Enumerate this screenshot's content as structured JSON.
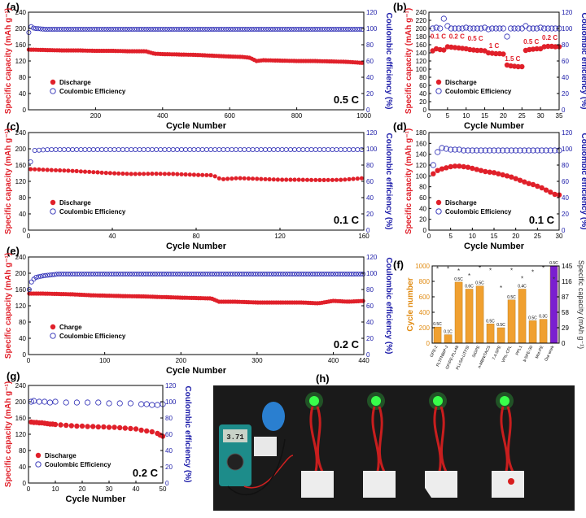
{
  "colors": {
    "discharge": "#e0202a",
    "efficiency": "#2828b4",
    "bar": "#f0a030",
    "bar_highlight": "#7a1fd0",
    "axis_left": "#e0202a",
    "axis_right": "#1a1aa8"
  },
  "chart_data": [
    {
      "panel": "(a)",
      "type": "scatter",
      "ylabel_left": "Specific capacity (mAh g⁻¹)",
      "ylabel_right": "Coulombic efficiency (%)",
      "xlabel": "Cycle Number",
      "xlim": [
        0,
        1000
      ],
      "ylim_left": [
        0,
        240
      ],
      "ylim_right": [
        0,
        120
      ],
      "xticks": [
        200,
        400,
        600,
        800,
        1000
      ],
      "yticks_left": [
        0,
        40,
        80,
        120,
        160,
        200,
        240
      ],
      "yticks_right": [
        0,
        20,
        40,
        60,
        80,
        100,
        120
      ],
      "legend": [
        "Discharge",
        "Coulombic Efficiency"
      ],
      "rate_label": "0.5 C",
      "series": [
        {
          "name": "Discharge",
          "axis": "left",
          "x": [
            1,
            50,
            100,
            150,
            200,
            250,
            300,
            350,
            375,
            400,
            450,
            500,
            550,
            600,
            640,
            660,
            680,
            700,
            750,
            800,
            850,
            900,
            950,
            1000
          ],
          "y": [
            148,
            147,
            146,
            146,
            145,
            145,
            144,
            144,
            138,
            137,
            136,
            135,
            133,
            131,
            130,
            128,
            120,
            122,
            121,
            120,
            120,
            119,
            118,
            115
          ]
        },
        {
          "name": "Coulombic Efficiency",
          "axis": "right",
          "x": [
            1,
            5,
            10,
            20,
            50,
            100,
            200,
            300,
            400,
            500,
            600,
            700,
            800,
            900,
            1000
          ],
          "y": [
            95,
            104,
            101,
            100,
            99,
            99,
            99,
            99,
            99,
            99,
            99,
            99,
            99,
            99,
            99
          ]
        }
      ]
    },
    {
      "panel": "(b)",
      "type": "scatter",
      "ylabel_left": "Specific capacity (mAh g⁻¹)",
      "ylabel_right": "Coulombic efficiency (%)",
      "xlabel": "Cycle Number",
      "xlim": [
        0,
        35
      ],
      "ylim_left": [
        0,
        240
      ],
      "ylim_right": [
        0,
        120
      ],
      "xticks": [
        0,
        5,
        10,
        15,
        20,
        25,
        30,
        35
      ],
      "yticks_left": [
        0,
        20,
        40,
        60,
        80,
        100,
        120,
        140,
        160,
        180,
        200,
        220,
        240
      ],
      "yticks_right": [
        0,
        20,
        40,
        60,
        80,
        100,
        120
      ],
      "legend": [
        "Discharge",
        "Coulombic Efficiency"
      ],
      "annotations": [
        {
          "text": "0.1 C",
          "x": 2.5,
          "y": 175
        },
        {
          "text": "0.2 C",
          "x": 7.5,
          "y": 175
        },
        {
          "text": "0.5 C",
          "x": 12.5,
          "y": 170
        },
        {
          "text": "1 C",
          "x": 17.5,
          "y": 152
        },
        {
          "text": "1.5 C",
          "x": 22.5,
          "y": 120
        },
        {
          "text": "0.5 C",
          "x": 27.5,
          "y": 162
        },
        {
          "text": "0.2 C",
          "x": 32.5,
          "y": 172
        }
      ],
      "series": [
        {
          "name": "Discharge",
          "axis": "left",
          "x": [
            1,
            2,
            3,
            4,
            5,
            6,
            7,
            8,
            9,
            10,
            11,
            12,
            13,
            14,
            15,
            16,
            17,
            18,
            19,
            20,
            21,
            22,
            23,
            24,
            25,
            26,
            27,
            28,
            29,
            30,
            31,
            32,
            33,
            34,
            35
          ],
          "y": [
            145,
            150,
            148,
            147,
            155,
            154,
            153,
            152,
            151,
            150,
            148,
            147,
            146,
            146,
            145,
            140,
            139,
            138,
            138,
            137,
            110,
            108,
            107,
            106,
            106,
            146,
            148,
            149,
            150,
            150,
            155,
            156,
            156,
            155,
            155
          ]
        },
        {
          "name": "Coulombic Efficiency",
          "axis": "right",
          "x": [
            1,
            2,
            3,
            4,
            5,
            6,
            7,
            8,
            9,
            10,
            11,
            12,
            13,
            14,
            15,
            16,
            17,
            18,
            19,
            20,
            21,
            22,
            23,
            24,
            25,
            26,
            27,
            28,
            29,
            30,
            31,
            32,
            33,
            34,
            35
          ],
          "y": [
            100,
            101,
            100,
            112,
            103,
            100,
            100,
            100,
            100,
            101,
            100,
            100,
            100,
            100,
            101,
            99,
            100,
            100,
            100,
            100,
            90,
            100,
            100,
            100,
            100,
            103,
            100,
            100,
            100,
            101,
            100,
            100,
            100,
            100,
            100
          ]
        }
      ]
    },
    {
      "panel": "(c)",
      "type": "scatter",
      "ylabel_left": "Specific capacity (mAh g⁻¹)",
      "ylabel_right": "Coulombic efficiency (%)",
      "xlabel": "Cycle Number",
      "xlim": [
        0,
        160
      ],
      "ylim_left": [
        0,
        240
      ],
      "ylim_right": [
        0,
        120
      ],
      "xticks": [
        0,
        40,
        80,
        120,
        160
      ],
      "yticks_left": [
        0,
        40,
        80,
        120,
        160,
        200,
        240
      ],
      "yticks_right": [
        0,
        20,
        40,
        60,
        80,
        100,
        120
      ],
      "legend": [
        "Discharge",
        "Coulombic Efficiency"
      ],
      "rate_label": "0.1 C",
      "series": [
        {
          "name": "Discharge",
          "axis": "left",
          "x": [
            1,
            10,
            20,
            30,
            40,
            50,
            60,
            70,
            80,
            88,
            92,
            100,
            110,
            120,
            130,
            140,
            150,
            160
          ],
          "y": [
            150,
            148,
            146,
            143,
            140,
            138,
            139,
            138,
            136,
            135,
            125,
            128,
            126,
            124,
            124,
            123,
            124,
            128
          ]
        },
        {
          "name": "Coulombic Efficiency",
          "axis": "right",
          "x": [
            1,
            3,
            10,
            20,
            40,
            60,
            80,
            100,
            120,
            140,
            160
          ],
          "y": [
            84,
            98,
            99,
            99,
            99,
            99,
            99,
            99,
            99,
            99,
            99
          ]
        }
      ]
    },
    {
      "panel": "(d)",
      "type": "scatter",
      "ylabel_left": "Specific capacity (mAh g⁻¹)",
      "ylabel_right": "Coulombic efficiency (%)",
      "xlabel": "Cycle Number",
      "xlim": [
        0,
        30
      ],
      "ylim_left": [
        0,
        180
      ],
      "ylim_right": [
        0,
        120
      ],
      "xticks": [
        0,
        5,
        10,
        15,
        20,
        25,
        30
      ],
      "yticks_left": [
        0,
        20,
        40,
        60,
        80,
        100,
        120,
        140,
        160,
        180
      ],
      "yticks_right": [
        0,
        20,
        40,
        60,
        80,
        100,
        120
      ],
      "legend": [
        "Discharge",
        "Coulombic Efficiency"
      ],
      "rate_label": "0.1 C",
      "series": [
        {
          "name": "Discharge",
          "axis": "left",
          "x": [
            1,
            2,
            3,
            4,
            5,
            6,
            7,
            8,
            9,
            10,
            11,
            12,
            13,
            14,
            15,
            16,
            17,
            18,
            19,
            20,
            21,
            22,
            23,
            24,
            25,
            26,
            27,
            28,
            29,
            30
          ],
          "y": [
            104,
            110,
            113,
            115,
            117,
            118,
            118,
            117,
            116,
            114,
            112,
            110,
            108,
            107,
            106,
            104,
            102,
            100,
            98,
            95,
            92,
            89,
            86,
            84,
            81,
            78,
            74,
            70,
            66,
            65
          ]
        },
        {
          "name": "Coulombic Efficiency",
          "axis": "right",
          "x": [
            1,
            2,
            3,
            4,
            5,
            6,
            7,
            8,
            9,
            10,
            11,
            12,
            13,
            14,
            15,
            16,
            17,
            18,
            19,
            20,
            21,
            22,
            23,
            24,
            25,
            26,
            27,
            28,
            29,
            30
          ],
          "y": [
            80,
            96,
            101,
            100,
            99,
            99,
            99,
            98,
            98,
            98,
            98,
            98,
            98,
            98,
            98,
            98,
            98,
            98,
            98,
            98,
            98,
            98,
            98,
            98,
            98,
            98,
            98,
            98,
            98,
            98
          ]
        }
      ]
    },
    {
      "panel": "(e)",
      "type": "scatter",
      "ylabel_left": "Specific capacity (mAh g⁻¹)",
      "ylabel_right": "Coulombic efficiency (%)",
      "xlabel": "Cycle Number",
      "xlim": [
        0,
        440
      ],
      "ylim_left": [
        0,
        240
      ],
      "ylim_right": [
        0,
        120
      ],
      "xticks": [
        0,
        100,
        200,
        300,
        400,
        440
      ],
      "yticks_left": [
        0,
        40,
        80,
        120,
        160,
        200,
        240
      ],
      "yticks_right": [
        0,
        20,
        40,
        60,
        80,
        100,
        120
      ],
      "legend": [
        "Charge",
        "Coulombic Efficiency"
      ],
      "rate_label": "0.2 C",
      "series": [
        {
          "name": "Charge",
          "axis": "left",
          "x": [
            1,
            20,
            40,
            60,
            80,
            100,
            120,
            150,
            200,
            240,
            250,
            270,
            300,
            320,
            340,
            360,
            380,
            400,
            420,
            440
          ],
          "y": [
            150,
            150,
            149,
            148,
            146,
            145,
            144,
            143,
            140,
            138,
            130,
            130,
            128,
            128,
            128,
            128,
            126,
            132,
            130,
            132
          ]
        },
        {
          "name": "Coulombic Efficiency",
          "axis": "right",
          "x": [
            1,
            3,
            6,
            10,
            20,
            30,
            40,
            60,
            100,
            200,
            300,
            400,
            440
          ],
          "y": [
            80,
            88,
            92,
            95,
            97,
            98,
            99,
            99,
            99,
            99,
            99,
            99,
            99
          ]
        }
      ]
    },
    {
      "panel": "(f)",
      "type": "bar",
      "ylabel_left": "Cycle number",
      "ylabel_right": "Specific capacity (mAh g⁻¹)",
      "ylim_left": [
        0,
        1000
      ],
      "ylim_right": [
        0,
        145
      ],
      "yticks_left": [
        0,
        200,
        400,
        600,
        800,
        1000
      ],
      "yticks_right": [
        0,
        29,
        58,
        87,
        116,
        145
      ],
      "categories": [
        "GPE-2",
        "PLTFNBIP-J",
        "GP/PE-PLi-48",
        "PLi-SA-LiTFSI",
        "SIGPE",
        "n-MBN/TACS",
        "7.4-SPE",
        "VPIL-CPL",
        "PPL1",
        "li-SPE-30",
        "Mot-PE",
        "Our work"
      ],
      "values": [
        210,
        110,
        790,
        700,
        740,
        250,
        200,
        560,
        700,
        290,
        310,
        1000
      ],
      "bar_labels": [
        "0.5C",
        "0.1C",
        "0.5C",
        "0.6C",
        "0.5C",
        "0.5C",
        "0.5C",
        "0.5C",
        "0.4C",
        "0.5C",
        "0.3C",
        "0.5C"
      ],
      "capacity": [
        138,
        138,
        134,
        125,
        140,
        135,
        102,
        135,
        120,
        132,
        140,
        118
      ]
    },
    {
      "panel": "(g)",
      "type": "scatter",
      "ylabel_left": "Specific capacity (mAh g⁻¹)",
      "ylabel_right": "Coulombic efficiency (%)",
      "xlabel": "Cycle Number",
      "xlim": [
        0,
        50
      ],
      "ylim_left": [
        0,
        240
      ],
      "ylim_right": [
        0,
        120
      ],
      "xticks": [
        0,
        10,
        20,
        30,
        40,
        50
      ],
      "yticks_left": [
        0,
        40,
        80,
        120,
        160,
        200,
        240
      ],
      "yticks_right": [
        0,
        20,
        40,
        60,
        80,
        100,
        120
      ],
      "legend": [
        "Discharge",
        "Coulombic Efficiency"
      ],
      "rate_label": "0.2 C",
      "series": [
        {
          "name": "Discharge",
          "axis": "left",
          "x": [
            1,
            2,
            3,
            4,
            5,
            6,
            7,
            8,
            9,
            10,
            12,
            14,
            16,
            18,
            20,
            22,
            24,
            26,
            28,
            30,
            32,
            34,
            36,
            38,
            40,
            42,
            44,
            46,
            48,
            49,
            50
          ],
          "y": [
            150,
            149,
            149,
            148,
            148,
            147,
            146,
            145,
            145,
            144,
            143,
            142,
            141,
            140,
            140,
            139,
            139,
            138,
            138,
            137,
            137,
            136,
            135,
            134,
            133,
            130,
            128,
            126,
            122,
            118,
            115
          ]
        },
        {
          "name": "Coulombic Efficiency",
          "axis": "right",
          "x": [
            1,
            2,
            4,
            6,
            8,
            10,
            14,
            18,
            22,
            26,
            30,
            34,
            38,
            42,
            44,
            46,
            48,
            50
          ],
          "y": [
            100,
            101,
            100,
            100,
            99,
            100,
            99,
            99,
            99,
            99,
            98,
            98,
            98,
            97,
            97,
            96,
            96,
            97
          ]
        }
      ]
    }
  ],
  "panel_h": {
    "label": "(h)",
    "meter_display": "3.71"
  }
}
